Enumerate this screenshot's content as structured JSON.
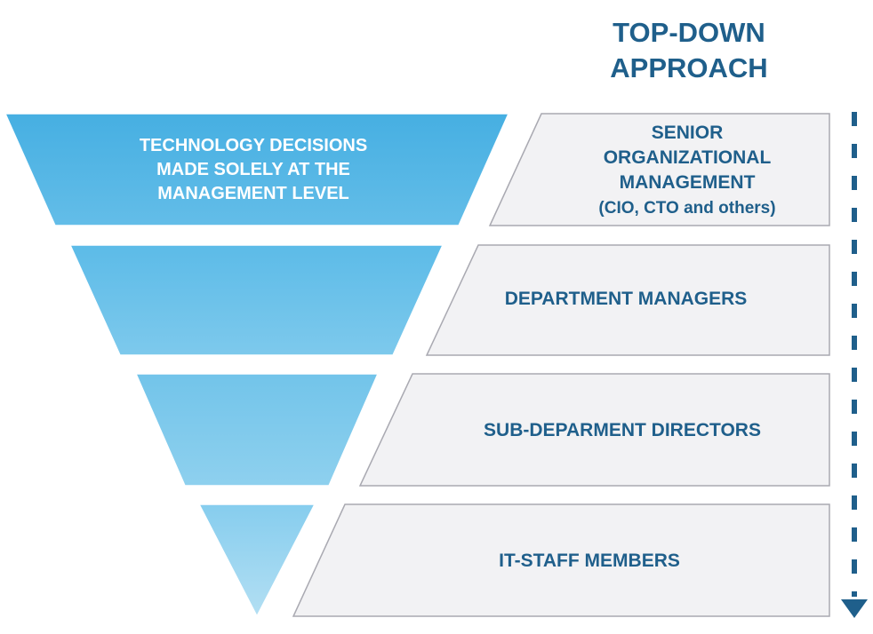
{
  "title": {
    "line1": "TOP-DOWN",
    "line2": "APPROACH"
  },
  "funnel": {
    "lines": [
      "TECHNOLOGY DECISIONS",
      "MADE SOLELY AT THE",
      "MANAGEMENT LEVEL"
    ]
  },
  "levels": [
    {
      "lines": [
        "SENIOR",
        "ORGANIZATIONAL",
        "MANAGEMENT",
        "(CIO, CTO and others)"
      ]
    },
    {
      "lines": [
        "DEPARTMENT MANAGERS"
      ]
    },
    {
      "lines": [
        "SUB-DEPARMENT DIRECTORS"
      ]
    },
    {
      "lines": [
        "IT-STAFF MEMBERS"
      ]
    }
  ],
  "colors": {
    "title": "#1f5f8b",
    "level_text": "#1f5f8b",
    "funnel_top": "#4fb3e3",
    "funnel_bottom": "#9fd6ef",
    "level_fill": "#f2f2f4",
    "level_stroke": "#a9a9b1",
    "arrow": "#1f5f8b"
  },
  "arrow": {
    "direction": "down",
    "style": "dashed",
    "icon": "arrow-down-icon"
  }
}
